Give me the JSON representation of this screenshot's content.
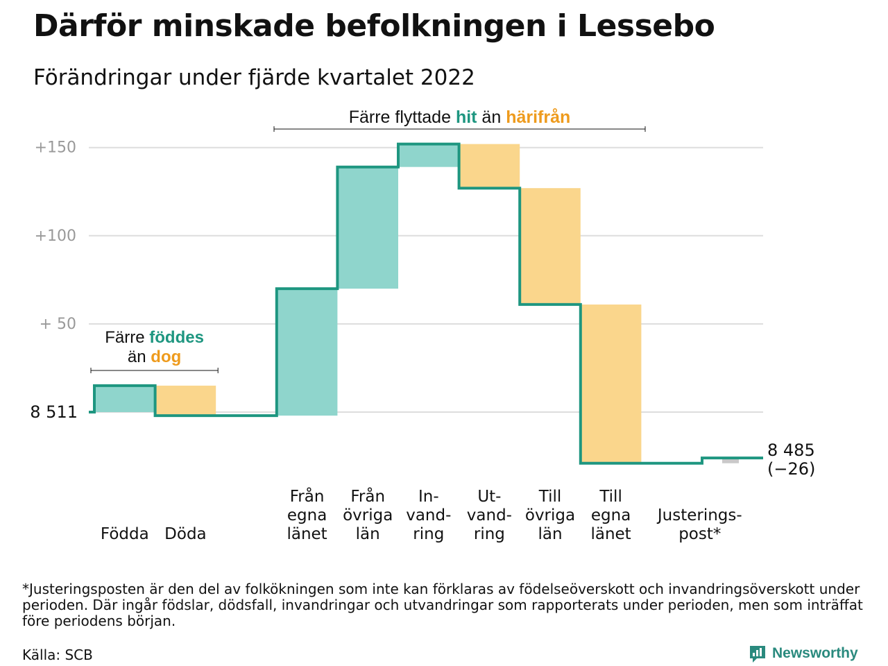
{
  "title": "Därför minskade befolkningen i Lessebo",
  "subtitle": "Förändringar under fjärde kvartalet 2022",
  "colors": {
    "line": "#1e9680",
    "increase_fill": "#8fd5cc",
    "decrease_fill": "#fad68c",
    "adjustment_fill": "#c9c9c9",
    "grid": "#dddddd",
    "axis_text": "#999999",
    "hit": "#1e9680",
    "harifran": "#ee9b1d"
  },
  "chart_data": {
    "type": "waterfall",
    "start_value": 8511,
    "end_value": 8485,
    "net_change": -26,
    "start_label": "8 511",
    "end_label": "8 485",
    "end_change_label": "(−26)",
    "ylim": [
      8437,
      8669
    ],
    "yticks": [
      {
        "value": 8561,
        "label": "+ 50"
      },
      {
        "value": 8611,
        "label": "+100"
      },
      {
        "value": 8661,
        "label": "+150"
      }
    ],
    "grid": true,
    "steps": [
      {
        "category": [
          "Födda"
        ],
        "value": 15
      },
      {
        "category": [
          "Döda"
        ],
        "value": -17
      },
      {
        "category": [
          "Från",
          "egna",
          "länet"
        ],
        "value": 72
      },
      {
        "category": [
          "Från",
          "övriga",
          "län"
        ],
        "value": 69
      },
      {
        "category": [
          "In-",
          "vand-",
          "ring"
        ],
        "value": 13
      },
      {
        "category": [
          "Ut-",
          "vand-",
          "ring"
        ],
        "value": -25
      },
      {
        "category": [
          "Till",
          "övriga",
          "län"
        ],
        "value": -66
      },
      {
        "category": [
          "Till",
          "egna",
          "länet"
        ],
        "value": -90
      },
      {
        "category": [
          "Justerings-",
          "post*"
        ],
        "value": 3
      }
    ],
    "annotations": {
      "births": {
        "pre": "Färre ",
        "highlight1": "föddes",
        "mid": "än ",
        "highlight2": "dog"
      },
      "migration": {
        "pre": "Färre flyttade ",
        "highlight1": "hit",
        "mid": " än ",
        "highlight2": "härifrån"
      }
    }
  },
  "footnote": "*Justeringsposten är den del av folkökningen som inte kan förklaras av födelseöverskott och invandringsöverskott under perioden. Där ingår födslar, dödsfall, invandringar och utvandringar som rapporterats under perioden, men som inträffat före periodens början.",
  "source": "Källa: SCB",
  "brand": "Newsworthy"
}
